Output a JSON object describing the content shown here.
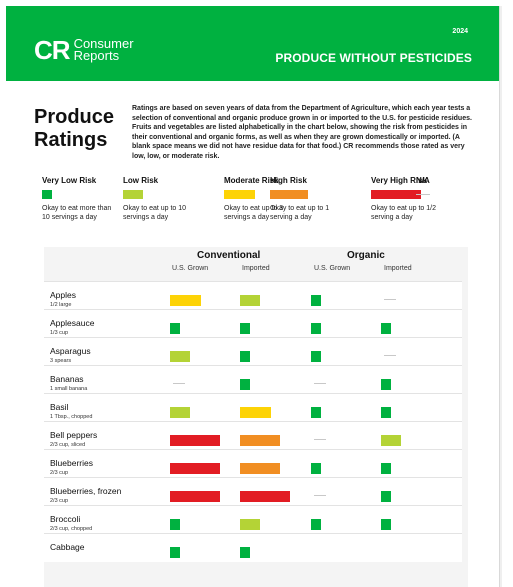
{
  "header": {
    "logo_mark": "CR",
    "logo_line1": "Consumer",
    "logo_line2": "Reports",
    "year": "2024",
    "title": "PRODUCE WITHOUT PESTICIDES"
  },
  "title_line1": "Produce",
  "title_line2": "Ratings",
  "intro": "Ratings are based on seven years of data from the Department of Agriculture, which each year tests a selection of conventional and organic produce grown in or imported to the U.S. for pesticide residues. Fruits and vegetables are listed alphabetically in the chart below, showing the risk from pesticides in their conventional and organic forms, as well as when they are grown domestically or imported. (A blank space means we did not have residue data for that food.) CR recommends those rated as very low, low, or moderate risk.",
  "legend": [
    {
      "label": "Very Low Risk",
      "desc": "Okay to eat more than 10 servings a day",
      "color": "#00b140"
    },
    {
      "label": "Low Risk",
      "desc": "Okay to eat up to 10 servings a day",
      "color": "#b4d336"
    },
    {
      "label": "Moderate Risk",
      "desc": "Okay to eat up to 3 servings a day",
      "color": "#fdd306"
    },
    {
      "label": "High Risk",
      "desc": "Okay to eat up to 1 serving a day",
      "color": "#f18e22"
    },
    {
      "label": "Very High Risk",
      "desc": "Okay to eat up to 1/2 serving a day",
      "color": "#e21c23"
    },
    {
      "label": "N/A",
      "desc": "",
      "color": "#c8c8c8"
    }
  ],
  "table": {
    "conventional": "Conventional",
    "organic": "Organic",
    "us_grown": "U.S. Grown",
    "imported": "Imported",
    "rows": [
      {
        "name": "Apples",
        "serving": "1/2 large",
        "ratings": [
          "Moderate Risk",
          "Low Risk",
          "Very Low Risk",
          "N/A"
        ]
      },
      {
        "name": "Applesauce",
        "serving": "1/3 cup",
        "ratings": [
          "Very Low Risk",
          "Very Low Risk",
          "Very Low Risk",
          "Very Low Risk"
        ]
      },
      {
        "name": "Asparagus",
        "serving": "3 spears",
        "ratings": [
          "Low Risk",
          "Very Low Risk",
          "Very Low Risk",
          "N/A"
        ]
      },
      {
        "name": "Bananas",
        "serving": "1 small banana",
        "ratings": [
          "N/A",
          "Very Low Risk",
          "N/A",
          "Very Low Risk"
        ]
      },
      {
        "name": "Basil",
        "serving": "1 Tbsp., chopped",
        "ratings": [
          "Low Risk",
          "Moderate Risk",
          "Very Low Risk",
          "Very Low Risk"
        ]
      },
      {
        "name": "Bell peppers",
        "serving": "2/3 cup, sliced",
        "ratings": [
          "Very High Risk",
          "High Risk",
          "N/A",
          "Low Risk"
        ]
      },
      {
        "name": "Blueberries",
        "serving": "2/3 cup",
        "ratings": [
          "Very High Risk",
          "High Risk",
          "Very Low Risk",
          "Very Low Risk"
        ]
      },
      {
        "name": "Blueberries, frozen",
        "serving": "2/3 cup",
        "ratings": [
          "Very High Risk",
          "Very High Risk",
          "N/A",
          "Very Low Risk"
        ]
      },
      {
        "name": "Broccoli",
        "serving": "2/3 cup, chopped",
        "ratings": [
          "Very Low Risk",
          "Low Risk",
          "Very Low Risk",
          "Very Low Risk"
        ]
      },
      {
        "name": "Cabbage",
        "serving": "",
        "ratings": [
          "Very Low Risk",
          "Very Low Risk",
          "",
          ""
        ]
      }
    ]
  }
}
